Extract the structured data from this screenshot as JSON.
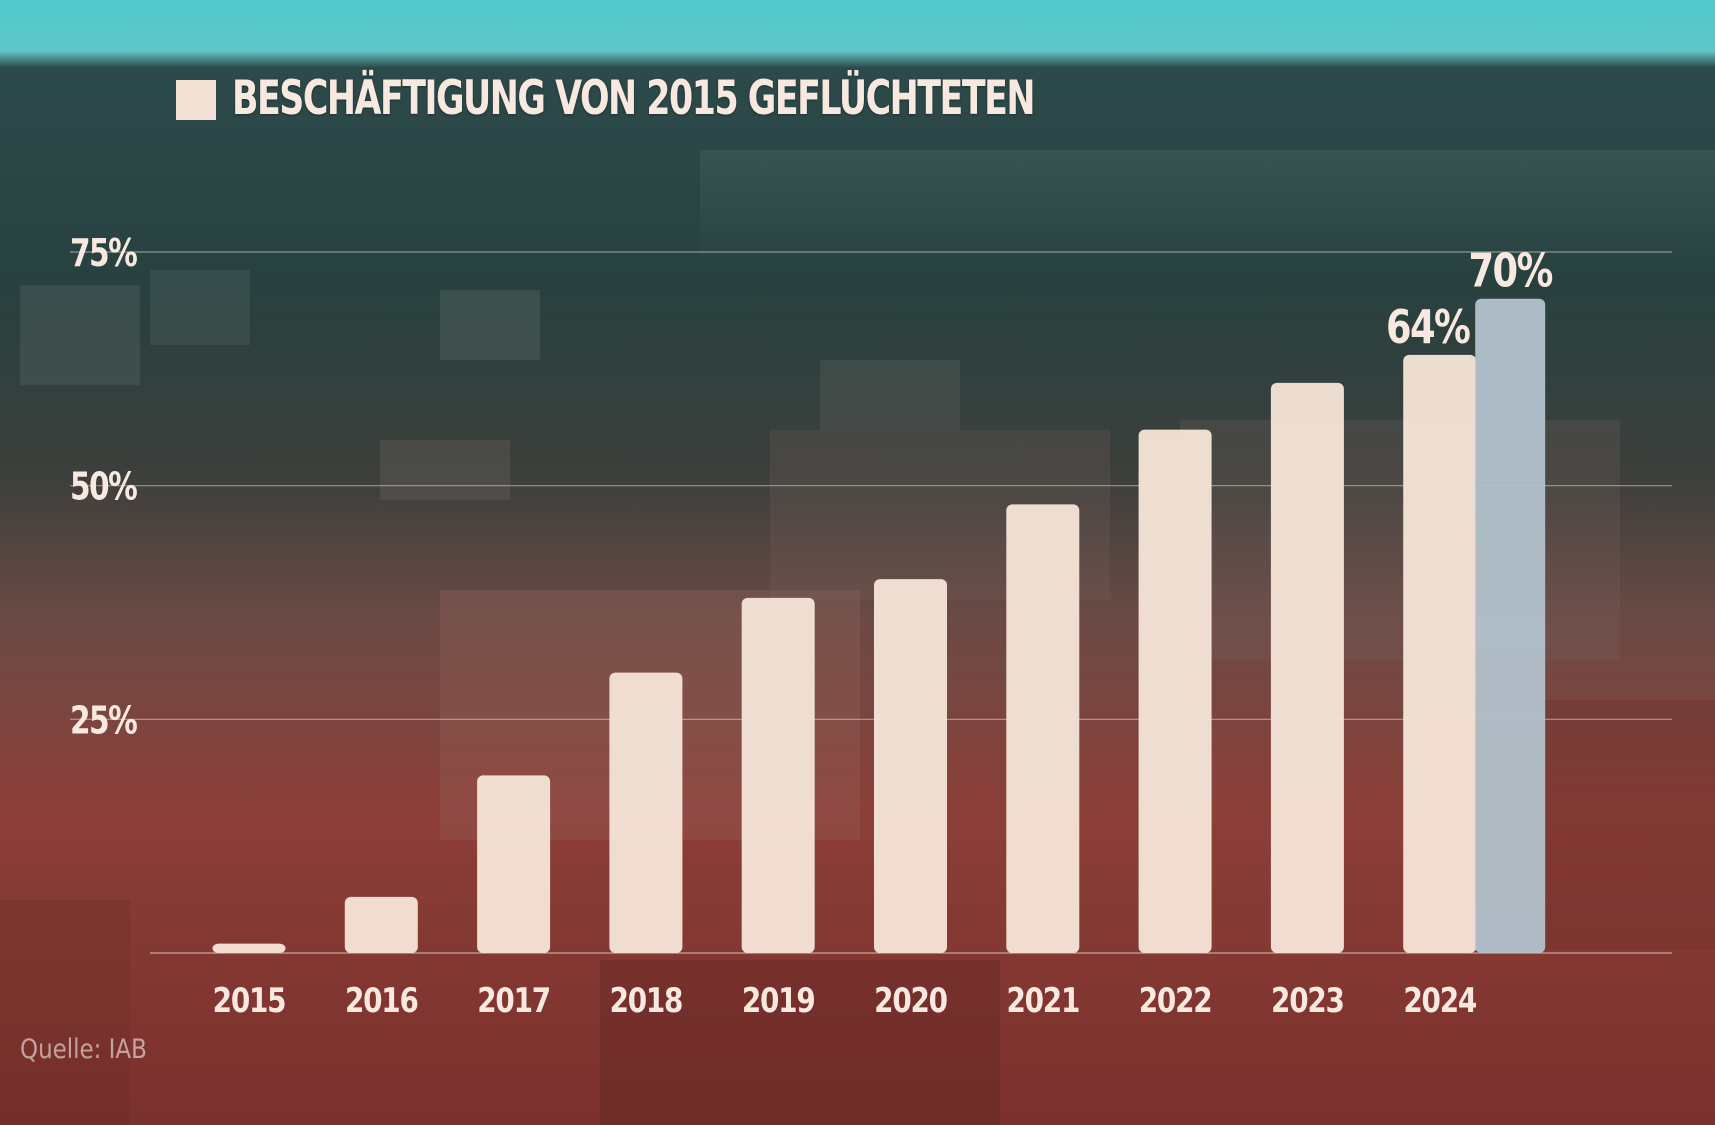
{
  "title": "BESCHÄFTIGUNG VON 2015 GEFLÜCHTETEN",
  "source": "Quelle: IAB",
  "colors": {
    "bar": "#f4e2d6",
    "bar_highlight": "#b3c2cc",
    "sky": "#4fc9cf",
    "tint_top": "#223c3d",
    "tint_bottom": "#8a3a34",
    "text": "#f7e9df"
  },
  "chart_data": {
    "type": "bar",
    "title": "BESCHÄFTIGUNG VON 2015 GEFLÜCHTETEN",
    "categories": [
      "2015",
      "2016",
      "2017",
      "2018",
      "2019",
      "2020",
      "2021",
      "2022",
      "2023",
      "2024"
    ],
    "series": [
      {
        "values": [
          1,
          6,
          19,
          30,
          38,
          40,
          48,
          56,
          61,
          64
        ]
      },
      {
        "values": [
          null,
          null,
          null,
          null,
          null,
          null,
          null,
          null,
          null,
          70
        ]
      }
    ],
    "data_labels": [
      "",
      "",
      "",
      "",
      "",
      "",
      "",
      "",
      "",
      "64%"
    ],
    "highlight_label": "70%",
    "y_ticks": [
      "25%",
      "50%",
      "75%"
    ],
    "y_tick_values": [
      25,
      50,
      75
    ],
    "ylim": [
      0,
      75
    ],
    "xlabel": "",
    "ylabel": "",
    "grid": true,
    "legend": "top-left"
  }
}
